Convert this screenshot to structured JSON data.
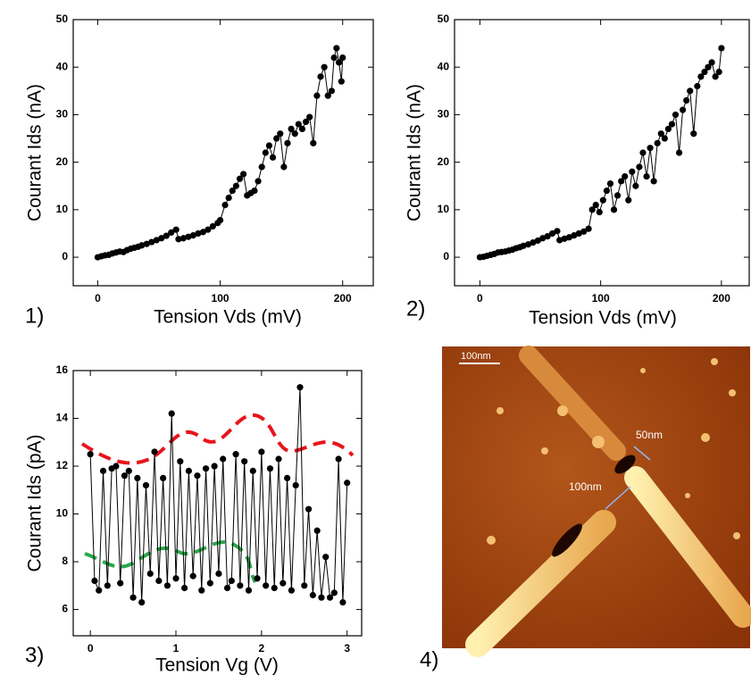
{
  "chart_data": [
    {
      "type": "line",
      "panel_label": "1)",
      "x_label": "Tension Vds (mV)",
      "y_label": "Courant Ids (nA)",
      "color": "#000000",
      "xlim": [
        -20,
        225
      ],
      "ylim": [
        -6,
        50
      ],
      "xticks": [
        0,
        100,
        200
      ],
      "yticks": [
        0,
        10,
        20,
        30,
        40,
        50
      ],
      "x": [
        0,
        3,
        6,
        9,
        12,
        15,
        18,
        21,
        24,
        27,
        30,
        33,
        36,
        40,
        44,
        48,
        52,
        56,
        60,
        64,
        66,
        70,
        74,
        78,
        82,
        86,
        90,
        94,
        98,
        100,
        104,
        107,
        110,
        113,
        116,
        119,
        122,
        125,
        128,
        131,
        134,
        137,
        140,
        143,
        146,
        149,
        152,
        155,
        158,
        161,
        164,
        167,
        170,
        173,
        176,
        179,
        182,
        185,
        188,
        191,
        193,
        195,
        197,
        199,
        200
      ],
      "values": [
        0,
        0.2,
        0.4,
        0.5,
        0.8,
        1,
        1.2,
        1.1,
        1.5,
        1.8,
        2,
        2.2,
        2.5,
        2.8,
        3.2,
        3.6,
        4,
        4.5,
        5.2,
        5.8,
        3.8,
        4,
        4.3,
        4.6,
        5,
        5.3,
        5.8,
        6.5,
        7.2,
        7.8,
        11,
        12.5,
        14,
        15,
        16.5,
        17.5,
        13,
        13.5,
        14,
        16,
        19,
        22,
        23.5,
        21,
        25,
        26,
        19,
        24,
        27,
        26,
        28,
        27,
        28.5,
        29.5,
        24,
        34,
        38,
        40,
        34,
        35,
        42,
        44,
        41,
        37,
        42
      ]
    },
    {
      "type": "line",
      "panel_label": "2)",
      "x_label": "Tension Vds (mV)",
      "y_label": "Courant Ids (nA)",
      "color": "#000000",
      "xlim": [
        -21,
        223
      ],
      "ylim": [
        -6,
        50
      ],
      "xticks": [
        0,
        100,
        200
      ],
      "yticks": [
        0,
        10,
        20,
        30,
        40,
        50
      ],
      "x": [
        0,
        3,
        6,
        9,
        12,
        15,
        18,
        21,
        24,
        27,
        30,
        33,
        36,
        40,
        44,
        48,
        52,
        56,
        60,
        64,
        66,
        70,
        74,
        78,
        82,
        86,
        90,
        93,
        96,
        99,
        102,
        105,
        108,
        111,
        114,
        117,
        120,
        123,
        126,
        129,
        132,
        135,
        138,
        141,
        144,
        147,
        150,
        153,
        156,
        159,
        162,
        165,
        168,
        171,
        174,
        177,
        180,
        183,
        186,
        189,
        192,
        195,
        198,
        200
      ],
      "values": [
        0,
        0.1,
        0.3,
        0.5,
        0.7,
        1,
        1.1,
        1.2,
        1.4,
        1.6,
        1.9,
        2.1,
        2.4,
        2.7,
        3.1,
        3.5,
        4,
        4.4,
        5,
        5.5,
        3.6,
        3.9,
        4.2,
        4.6,
        5,
        5.4,
        6,
        10,
        11,
        9.5,
        12,
        14,
        15.5,
        10,
        13,
        16,
        17,
        12,
        18,
        15,
        19,
        22,
        17,
        23,
        16,
        24,
        26,
        25,
        27,
        28,
        30,
        22,
        31,
        33,
        35,
        26,
        36,
        38,
        39,
        40,
        41,
        38,
        39,
        44
      ]
    },
    {
      "type": "line",
      "panel_label": "3)",
      "x_label": "Tension Vg (V)",
      "y_label": "Courant Ids (pA)",
      "color": "#000000",
      "xlim": [
        -0.2,
        3.17
      ],
      "ylim": [
        4.9,
        16
      ],
      "xticks": [
        0,
        1,
        2,
        3
      ],
      "yticks": [
        6,
        8,
        10,
        12,
        14,
        16
      ],
      "x": [
        0,
        0.05,
        0.1,
        0.15,
        0.2,
        0.25,
        0.3,
        0.35,
        0.4,
        0.45,
        0.5,
        0.55,
        0.6,
        0.65,
        0.7,
        0.75,
        0.8,
        0.85,
        0.9,
        0.95,
        1.0,
        1.05,
        1.1,
        1.15,
        1.2,
        1.25,
        1.3,
        1.35,
        1.4,
        1.45,
        1.5,
        1.55,
        1.6,
        1.65,
        1.7,
        1.75,
        1.8,
        1.85,
        1.9,
        1.95,
        2.0,
        2.05,
        2.1,
        2.15,
        2.2,
        2.25,
        2.3,
        2.35,
        2.4,
        2.45,
        2.5,
        2.55,
        2.6,
        2.65,
        2.7,
        2.75,
        2.8,
        2.85,
        2.9,
        2.95,
        3.0
      ],
      "values": [
        12.5,
        7.2,
        6.8,
        11.8,
        7,
        11.9,
        12,
        7.1,
        11.6,
        11.8,
        6.5,
        11.5,
        6.3,
        11.2,
        7.5,
        12.6,
        7.2,
        11.5,
        7,
        14.2,
        7.3,
        12.2,
        6.9,
        11.8,
        7.4,
        11.6,
        6.8,
        11.9,
        7.1,
        12,
        7.5,
        12.3,
        6.9,
        7.2,
        12.5,
        7,
        12.2,
        6.8,
        11.8,
        7.3,
        12.6,
        7,
        11.9,
        6.9,
        12.3,
        7.1,
        11.5,
        6.8,
        11.2,
        15.3,
        7,
        10.2,
        6.6,
        9.3,
        6.5,
        8.2,
        6.5,
        6.7,
        12.3,
        6.3,
        11.3
      ]
    }
  ],
  "image": {
    "panel_label": "4)",
    "scale_bar": "100nm",
    "annotations": [
      "50nm",
      "100nm"
    ]
  }
}
